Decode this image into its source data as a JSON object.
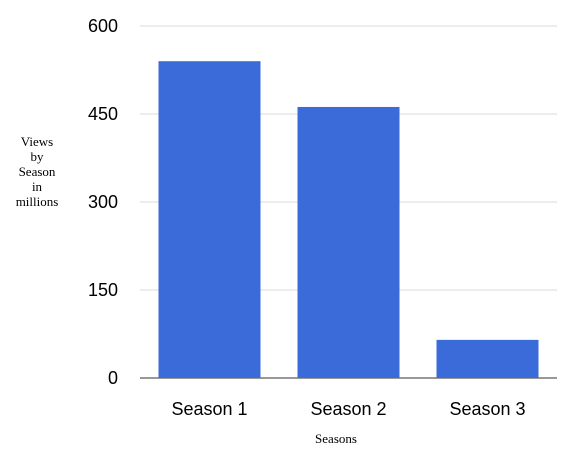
{
  "chart_data": {
    "type": "bar",
    "title": "",
    "xlabel": "Seasons",
    "ylabel_lines": [
      "Views",
      "by",
      "Season",
      "in",
      "millions"
    ],
    "categories": [
      "Season 1",
      "Season 2",
      "Season 3"
    ],
    "series": [
      {
        "values": [
          540,
          462,
          65
        ],
        "color": "#3b6bd8"
      }
    ],
    "ylim": [
      0,
      600
    ],
    "yticks": [
      "0",
      "150",
      "300",
      "450",
      "600"
    ],
    "ytick_values": [
      0,
      150,
      300,
      450,
      600
    ],
    "grid": true,
    "legend": "none"
  }
}
